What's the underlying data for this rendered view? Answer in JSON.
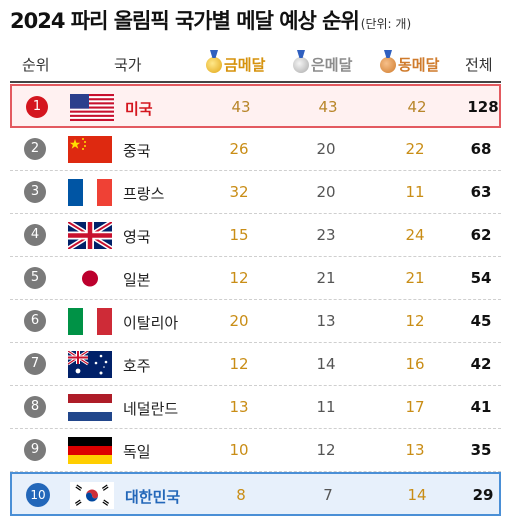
{
  "title": "2024 파리 올림픽 국가별 메달 예상 순위",
  "unit": "(단위: 개)",
  "header": {
    "rank": "순위",
    "country": "국가",
    "gold": "금메달",
    "silver": "은메달",
    "bronze": "동메달",
    "total": "전체"
  },
  "colors": {
    "gold": "#d6920c",
    "silver": "#8c8c8c",
    "bronze": "#cf7b2c",
    "highlight_top": "#e35a60",
    "highlight_korea": "#4a8fd6"
  },
  "rows": [
    {
      "rank": "1",
      "flag": "usa-flag-icon",
      "country": "미국",
      "gold": "43",
      "silver": "43",
      "bronze": "42",
      "total": "128"
    },
    {
      "rank": "2",
      "flag": "china-flag-icon",
      "country": "중국",
      "gold": "26",
      "silver": "20",
      "bronze": "22",
      "total": "68"
    },
    {
      "rank": "3",
      "flag": "france-flag-icon",
      "country": "프랑스",
      "gold": "32",
      "silver": "20",
      "bronze": "11",
      "total": "63"
    },
    {
      "rank": "4",
      "flag": "uk-flag-icon",
      "country": "영국",
      "gold": "15",
      "silver": "23",
      "bronze": "24",
      "total": "62"
    },
    {
      "rank": "5",
      "flag": "japan-flag-icon",
      "country": "일본",
      "gold": "12",
      "silver": "21",
      "bronze": "21",
      "total": "54"
    },
    {
      "rank": "6",
      "flag": "italy-flag-icon",
      "country": "이탈리아",
      "gold": "20",
      "silver": "13",
      "bronze": "12",
      "total": "45"
    },
    {
      "rank": "7",
      "flag": "australia-flag-icon",
      "country": "호주",
      "gold": "12",
      "silver": "14",
      "bronze": "16",
      "total": "42"
    },
    {
      "rank": "8",
      "flag": "netherlands-flag-icon",
      "country": "네덜란드",
      "gold": "13",
      "silver": "11",
      "bronze": "17",
      "total": "41"
    },
    {
      "rank": "9",
      "flag": "germany-flag-icon",
      "country": "독일",
      "gold": "10",
      "silver": "12",
      "bronze": "13",
      "total": "35"
    },
    {
      "rank": "10",
      "flag": "korea-flag-icon",
      "country": "대한민국",
      "gold": "8",
      "silver": "7",
      "bronze": "14",
      "total": "29"
    }
  ]
}
